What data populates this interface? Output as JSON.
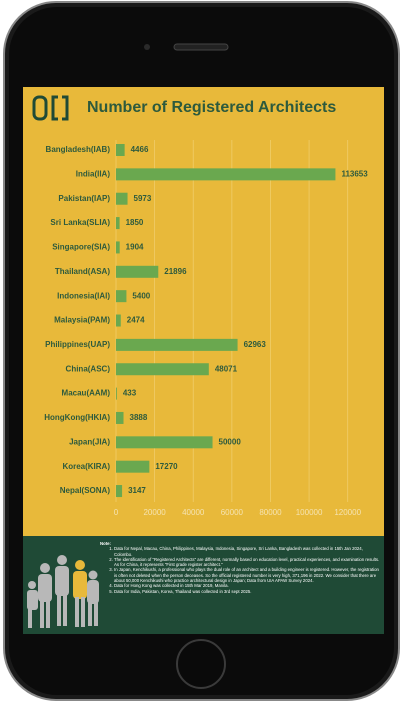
{
  "chart_data": {
    "type": "bar",
    "orientation": "horizontal",
    "title": "Number of Registered Architects",
    "categories": [
      "Bangladesh(IAB)",
      "India(IIA)",
      "Pakistan(IAP)",
      "Sri Lanka(SLIA)",
      "Singapore(SIA)",
      "Thailand(ASA)",
      "Indonesia(IAI)",
      "Malaysia(PAM)",
      "Philippines(UAP)",
      "China(ASC)",
      "Macau(AAM)",
      "HongKong(HKIA)",
      "Japan(JIA)",
      "Korea(KIRA)",
      "Nepal(SONA)"
    ],
    "values": [
      4466,
      113653,
      5973,
      1850,
      1904,
      21896,
      5400,
      2474,
      62963,
      48071,
      433,
      3888,
      50000,
      17270,
      3147
    ],
    "color": "#6aa84f",
    "xlim": [
      0,
      130000
    ],
    "xticks": [
      0,
      20000,
      40000,
      60000,
      80000,
      100000,
      120000
    ],
    "grid": true
  },
  "notes": {
    "heading": "Note:",
    "items": [
      "Data for Nepal, Macau, China, Philippines, Malaysia, Indonesia, Singapore, Sri Lanka, Bangladesh was collected in 15th Jan 2024, Colombo.",
      "The identification of \"Registered Architects\" are different, normally based on education level, practical experiences, and examination results. As for China, it represents \"First grade register architect.\"",
      "In Japan, Kenchikushi, a professional who plays the dual role of an architect and a building engineer is registered. However, the registration is often not deleted when the person deceases. So the official registered number is very high, 371,196 in 2022. We consider that there are about 50,000 Kenchikushi who practice architectural design in Japan; Data from UIA APAW Survey 2024.",
      "Data for Hong Kong was collected in 15th Mar 2019, Manila.",
      "Data for India, Pakistan, Korea, Thailand was collected in 3rd sept 2025."
    ]
  }
}
